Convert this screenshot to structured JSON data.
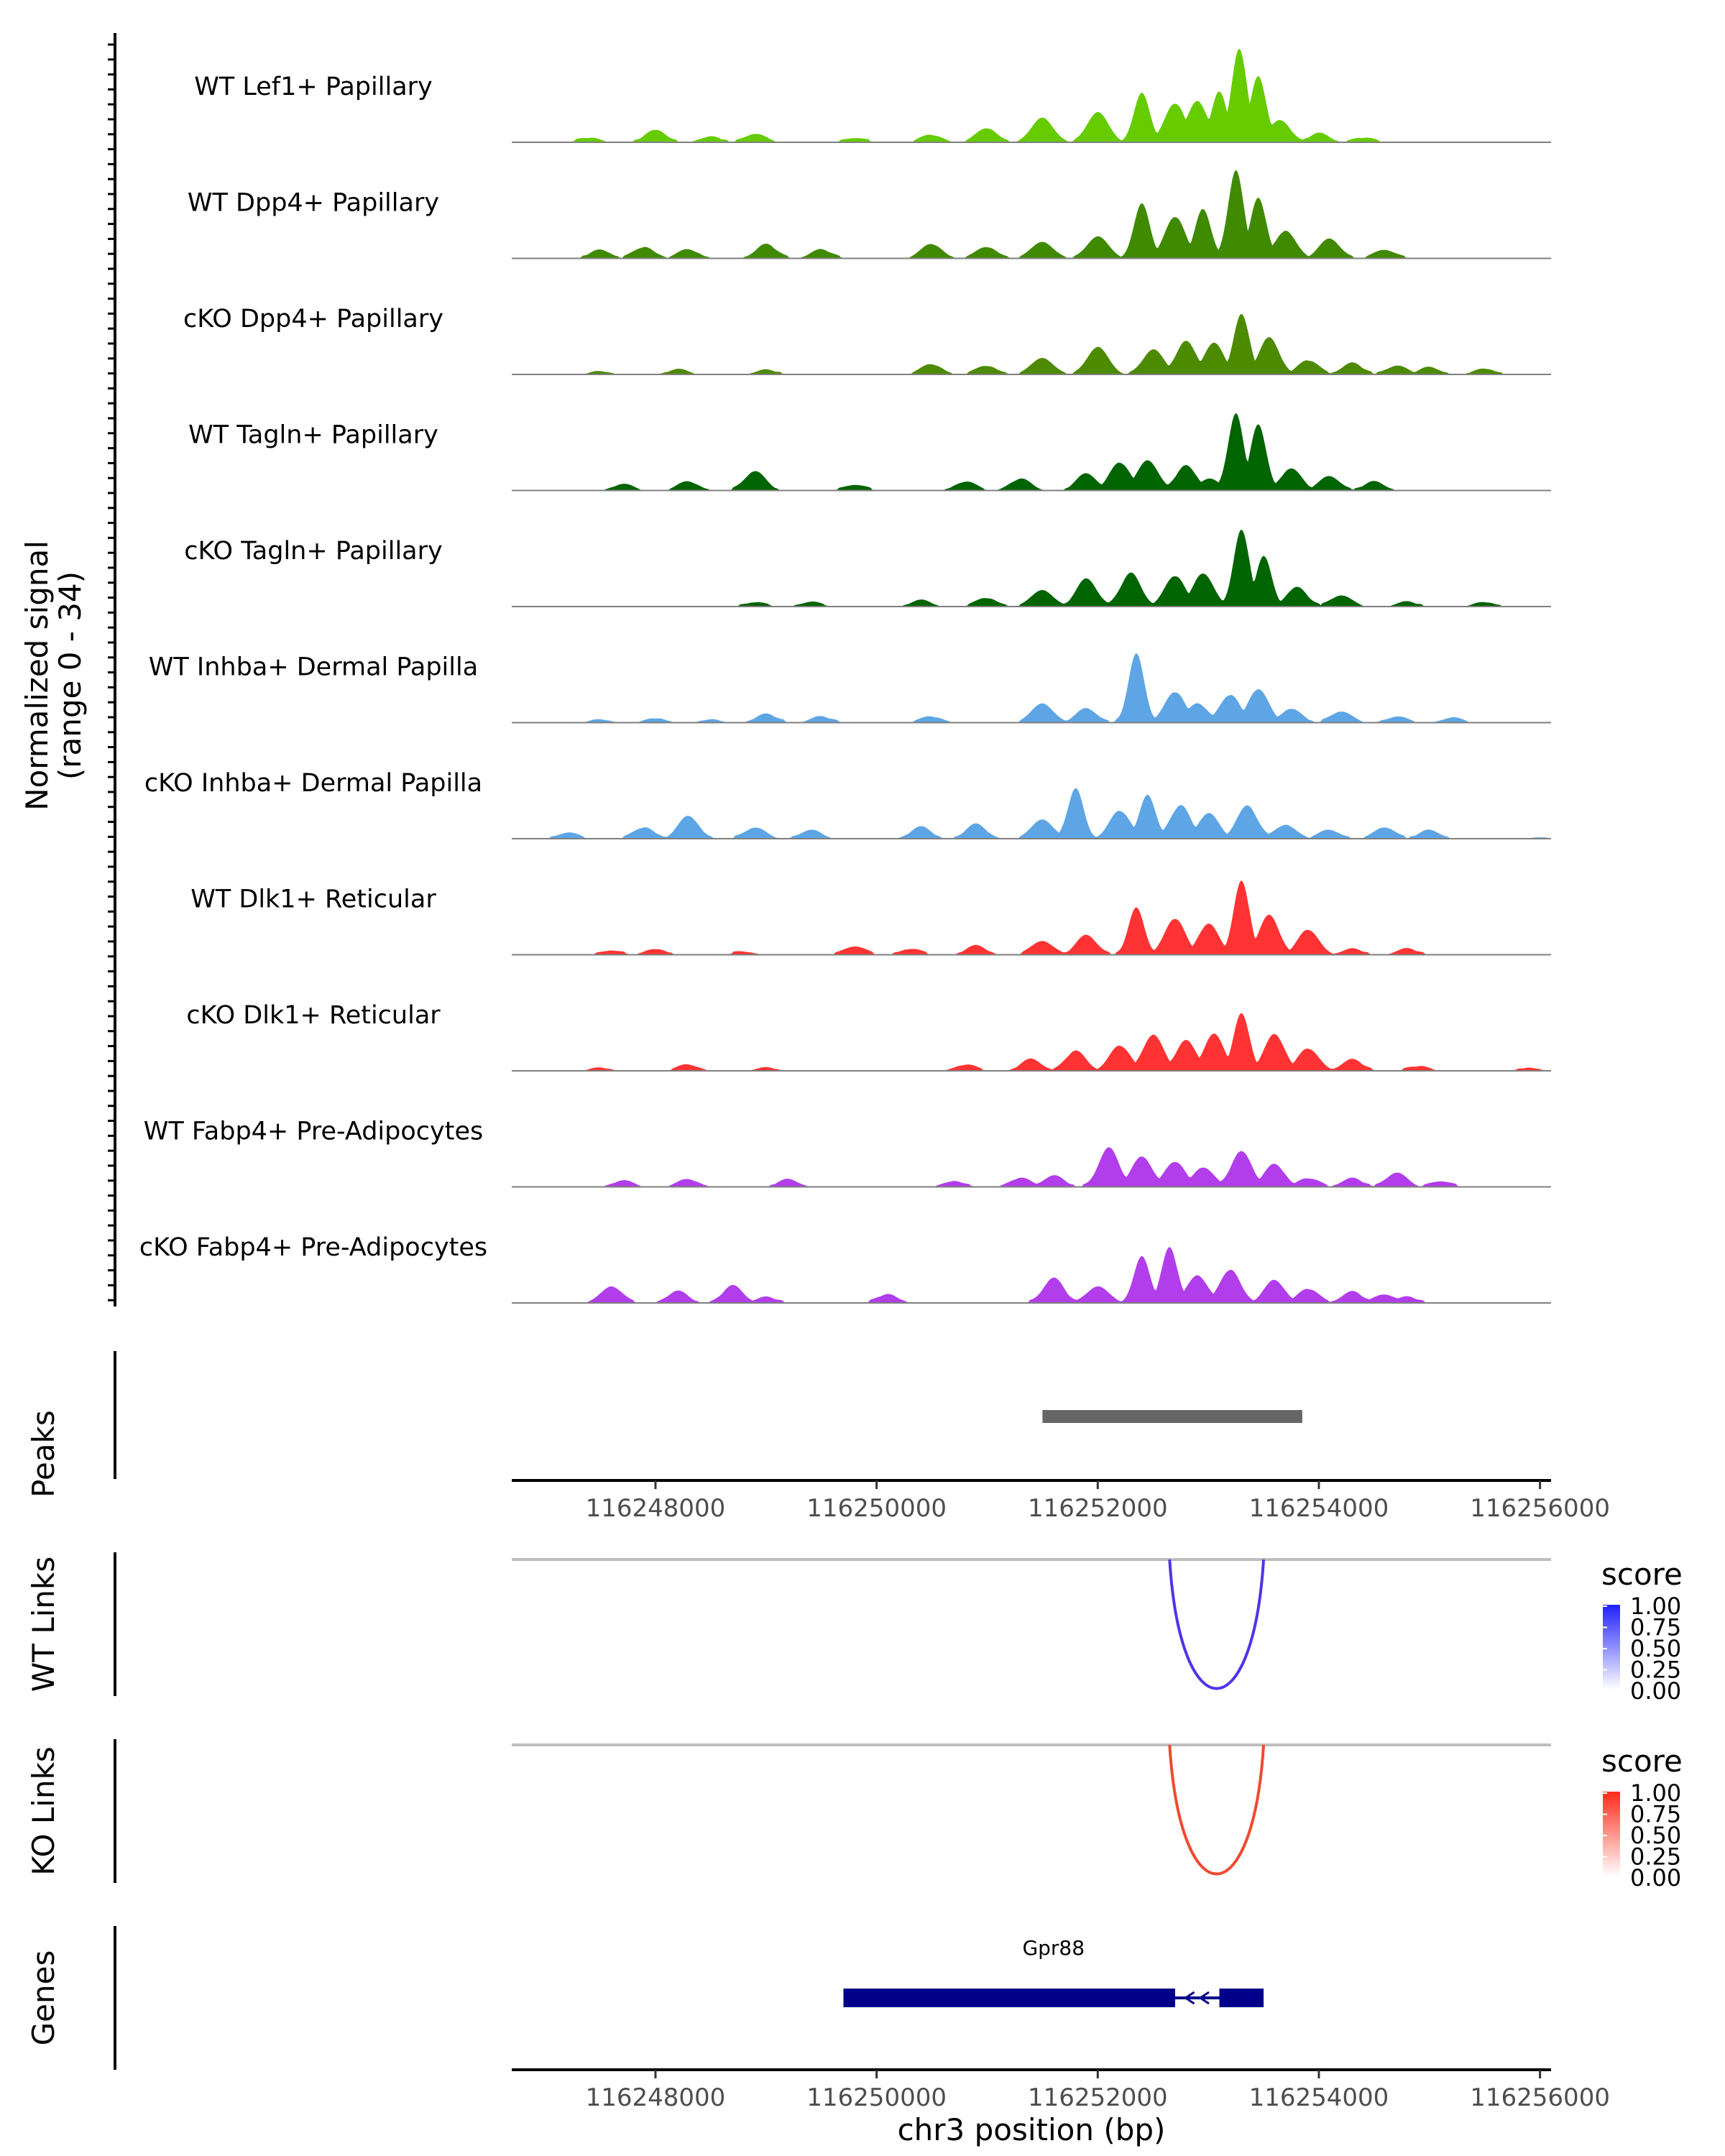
{
  "chart_data": {
    "type": "area",
    "title": "",
    "y_axis_label": "Normalized signal",
    "y_axis_range_label": "(range 0 - 34)",
    "ylim": [
      0,
      34
    ],
    "x_axis_label": "chr3 position (bp)",
    "xlim": [
      116246700,
      116256100
    ],
    "x_ticks": [
      116248000,
      116250000,
      116252000,
      116254000,
      116256000
    ],
    "x_tick_labels": [
      "116248000",
      "116250000",
      "116252000",
      "116254000",
      "116256000"
    ],
    "coverage_tracks": [
      {
        "name": "WT Lef1+ Papillary",
        "color": "#66CC00",
        "peaks": [
          [
            116247400,
            1.5
          ],
          [
            116248000,
            4.5
          ],
          [
            116248500,
            2
          ],
          [
            116248900,
            3
          ],
          [
            116249800,
            1.5
          ],
          [
            116250500,
            2.5
          ],
          [
            116251000,
            5
          ],
          [
            116251500,
            9
          ],
          [
            116252000,
            11
          ],
          [
            116252400,
            18
          ],
          [
            116252700,
            14
          ],
          [
            116252900,
            15
          ],
          [
            116253100,
            18
          ],
          [
            116253280,
            34
          ],
          [
            116253450,
            24
          ],
          [
            116253650,
            8
          ],
          [
            116254000,
            3
          ],
          [
            116254400,
            1.5
          ]
        ]
      },
      {
        "name": "WT Dpp4+ Papillary",
        "color": "#3F8A00",
        "peaks": [
          [
            116247500,
            3
          ],
          [
            116247900,
            4
          ],
          [
            116248300,
            3
          ],
          [
            116249000,
            5
          ],
          [
            116249500,
            3
          ],
          [
            116250500,
            5
          ],
          [
            116251000,
            4
          ],
          [
            116251500,
            6
          ],
          [
            116252000,
            8
          ],
          [
            116252400,
            20
          ],
          [
            116252700,
            15
          ],
          [
            116252950,
            18
          ],
          [
            116253250,
            32
          ],
          [
            116253450,
            22
          ],
          [
            116253700,
            10
          ],
          [
            116254100,
            7
          ],
          [
            116254600,
            3
          ]
        ]
      },
      {
        "name": "cKO Dpp4+ Papillary",
        "color": "#4C8A00",
        "peaks": [
          [
            116247500,
            1
          ],
          [
            116248200,
            1.5
          ],
          [
            116249000,
            1.5
          ],
          [
            116250500,
            3.5
          ],
          [
            116251000,
            3
          ],
          [
            116251500,
            6
          ],
          [
            116252000,
            10
          ],
          [
            116252500,
            9
          ],
          [
            116252800,
            12
          ],
          [
            116253050,
            11
          ],
          [
            116253300,
            22
          ],
          [
            116253550,
            13
          ],
          [
            116253900,
            5
          ],
          [
            116254300,
            4
          ],
          [
            116254700,
            3
          ],
          [
            116255000,
            2.5
          ],
          [
            116255500,
            2
          ]
        ]
      },
      {
        "name": "WT Tagln+ Papillary",
        "color": "#006400",
        "peaks": [
          [
            116247700,
            2
          ],
          [
            116248300,
            3
          ],
          [
            116248900,
            7
          ],
          [
            116249800,
            2
          ],
          [
            116250800,
            3
          ],
          [
            116251300,
            4
          ],
          [
            116251900,
            6
          ],
          [
            116252200,
            10
          ],
          [
            116252450,
            11
          ],
          [
            116252800,
            9
          ],
          [
            116253000,
            4
          ],
          [
            116253250,
            28
          ],
          [
            116253450,
            24
          ],
          [
            116253750,
            8
          ],
          [
            116254100,
            5
          ],
          [
            116254500,
            3
          ]
        ]
      },
      {
        "name": "cKO Tagln+ Papillary",
        "color": "#006400",
        "peaks": [
          [
            116248900,
            1.5
          ],
          [
            116249400,
            1.5
          ],
          [
            116250400,
            2
          ],
          [
            116251000,
            3
          ],
          [
            116251500,
            6
          ],
          [
            116251900,
            10
          ],
          [
            116252300,
            12
          ],
          [
            116252700,
            11
          ],
          [
            116252950,
            12
          ],
          [
            116253300,
            28
          ],
          [
            116253500,
            18
          ],
          [
            116253800,
            7
          ],
          [
            116254200,
            4
          ],
          [
            116254800,
            1.5
          ],
          [
            116255500,
            1.5
          ]
        ]
      },
      {
        "name": "WT Inhba+ Dermal Papilla",
        "color": "#5DA5E5",
        "peaks": [
          [
            116247500,
            1
          ],
          [
            116248000,
            1.5
          ],
          [
            116248500,
            1
          ],
          [
            116249000,
            3
          ],
          [
            116249500,
            2
          ],
          [
            116250500,
            2
          ],
          [
            116251500,
            7
          ],
          [
            116251900,
            5
          ],
          [
            116252350,
            25
          ],
          [
            116252700,
            11
          ],
          [
            116252900,
            7
          ],
          [
            116253200,
            10
          ],
          [
            116253450,
            12
          ],
          [
            116253750,
            5
          ],
          [
            116254200,
            4
          ],
          [
            116254700,
            2
          ],
          [
            116255200,
            1.5
          ]
        ]
      },
      {
        "name": "cKO Inhba+ Dermal Papilla",
        "color": "#5DA5E5",
        "peaks": [
          [
            116247200,
            2
          ],
          [
            116247900,
            4
          ],
          [
            116248300,
            8
          ],
          [
            116248900,
            4
          ],
          [
            116249400,
            3
          ],
          [
            116250400,
            4
          ],
          [
            116250900,
            5
          ],
          [
            116251500,
            7
          ],
          [
            116251800,
            18
          ],
          [
            116252200,
            10
          ],
          [
            116252450,
            16
          ],
          [
            116252750,
            12
          ],
          [
            116253000,
            9
          ],
          [
            116253350,
            12
          ],
          [
            116253700,
            5
          ],
          [
            116254100,
            3
          ],
          [
            116254600,
            4
          ],
          [
            116255000,
            3
          ],
          [
            116256000,
            0.5
          ]
        ]
      },
      {
        "name": "WT Dlk1+ Reticular",
        "color": "#FF3333",
        "peaks": [
          [
            116247600,
            1.5
          ],
          [
            116248000,
            2
          ],
          [
            116248800,
            1
          ],
          [
            116249800,
            3
          ],
          [
            116250300,
            2
          ],
          [
            116250900,
            3
          ],
          [
            116251500,
            5
          ],
          [
            116251900,
            7
          ],
          [
            116252350,
            17
          ],
          [
            116252700,
            13
          ],
          [
            116253000,
            11
          ],
          [
            116253300,
            27
          ],
          [
            116253550,
            14
          ],
          [
            116253900,
            9
          ],
          [
            116254300,
            2
          ],
          [
            116254800,
            2
          ]
        ]
      },
      {
        "name": "cKO Dlk1+ Reticular",
        "color": "#FF3333",
        "peaks": [
          [
            116247500,
            1
          ],
          [
            116248300,
            2
          ],
          [
            116249000,
            1
          ],
          [
            116250800,
            2
          ],
          [
            116251400,
            4
          ],
          [
            116251800,
            7
          ],
          [
            116252200,
            9
          ],
          [
            116252500,
            13
          ],
          [
            116252800,
            11
          ],
          [
            116253050,
            13
          ],
          [
            116253300,
            21
          ],
          [
            116253600,
            13
          ],
          [
            116253900,
            8
          ],
          [
            116254300,
            4
          ],
          [
            116254900,
            1.5
          ],
          [
            116255900,
            1
          ]
        ]
      },
      {
        "name": "WT Fabp4+ Pre-Adipocytes",
        "color": "#B23DEB",
        "peaks": [
          [
            116247700,
            2
          ],
          [
            116248300,
            2.5
          ],
          [
            116249200,
            2.5
          ],
          [
            116250700,
            2
          ],
          [
            116251300,
            3
          ],
          [
            116251600,
            4
          ],
          [
            116252100,
            14
          ],
          [
            116252400,
            11
          ],
          [
            116252700,
            9
          ],
          [
            116252950,
            7
          ],
          [
            116253300,
            13
          ],
          [
            116253600,
            8
          ],
          [
            116253900,
            3
          ],
          [
            116254300,
            3
          ],
          [
            116254700,
            5
          ],
          [
            116255100,
            2
          ]
        ]
      },
      {
        "name": "cKO Fabp4+ Pre-Adipocytes",
        "color": "#B23DEB",
        "peaks": [
          [
            116247600,
            6
          ],
          [
            116248200,
            4
          ],
          [
            116248700,
            6
          ],
          [
            116249000,
            2
          ],
          [
            116250100,
            3
          ],
          [
            116251600,
            9
          ],
          [
            116252000,
            6
          ],
          [
            116252400,
            17
          ],
          [
            116252650,
            20
          ],
          [
            116252900,
            10
          ],
          [
            116253200,
            12
          ],
          [
            116253600,
            8
          ],
          [
            116253900,
            5
          ],
          [
            116254300,
            4
          ],
          [
            116254600,
            3
          ],
          [
            116254800,
            2
          ]
        ]
      }
    ],
    "peaks_track": {
      "label": "Peaks",
      "color": "#666666",
      "regions": [
        [
          116251500,
          116253850
        ]
      ]
    },
    "link_tracks": [
      {
        "label": "WT Links",
        "color": "#4F35E8",
        "start": 116252650,
        "end": 116253500,
        "score": 1.0,
        "legend": {
          "title": "score",
          "ticks": [
            "1.00",
            "0.75",
            "0.50",
            "0.25",
            "0.00"
          ],
          "high_color": "#1F1FFF"
        }
      },
      {
        "label": "KO Links",
        "color": "#F04A30",
        "start": 116252650,
        "end": 116253500,
        "score": 1.0,
        "legend": {
          "title": "score",
          "ticks": [
            "1.00",
            "0.75",
            "0.50",
            "0.25",
            "0.00"
          ],
          "high_color": "#FF2A1A"
        }
      }
    ],
    "genes_track": {
      "label": "Genes",
      "genes": [
        {
          "name": "Gpr88",
          "color": "#00008B",
          "strand": "-",
          "exons": [
            [
              116249700,
              116252700
            ],
            [
              116253100,
              116253500
            ]
          ]
        }
      ]
    }
  }
}
